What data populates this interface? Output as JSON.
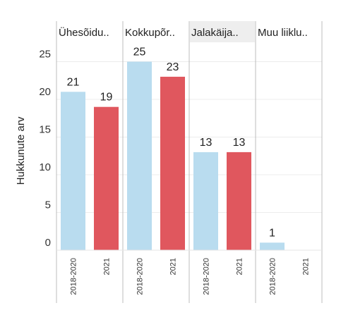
{
  "chart_data": {
    "type": "bar",
    "ylabel": "Hukkunute arv",
    "ylim": [
      0,
      25
    ],
    "yticks": [
      0,
      5,
      10,
      15,
      20,
      25
    ],
    "grid": true,
    "colors": {
      "2018-2020": "#b9dcef",
      "2021": "#e0575e"
    },
    "panels": [
      {
        "label": "Ühesõidu..",
        "bars": [
          {
            "x": "2018-2020",
            "value": 21
          },
          {
            "x": "2021",
            "value": 19
          }
        ]
      },
      {
        "label": "Kokkupõr..",
        "bars": [
          {
            "x": "2018-2020",
            "value": 25
          },
          {
            "x": "2021",
            "value": 23
          }
        ]
      },
      {
        "label": "Jalakäija..",
        "bars": [
          {
            "x": "2018-2020",
            "value": 13
          },
          {
            "x": "2021",
            "value": 13
          }
        ]
      },
      {
        "label": "Muu liiklu..",
        "bars": [
          {
            "x": "2018-2020",
            "value": 1
          },
          {
            "x": "2021",
            "value": null
          }
        ]
      }
    ]
  }
}
